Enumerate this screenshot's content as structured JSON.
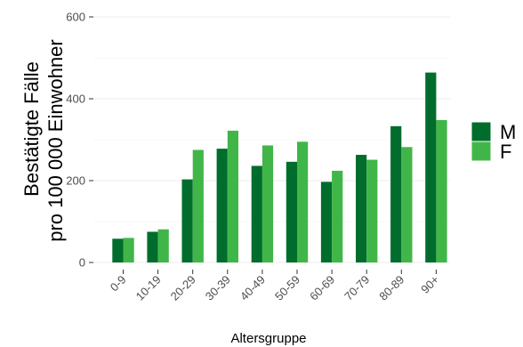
{
  "chart_data": {
    "type": "bar",
    "title": "",
    "xlabel": "Altersgruppe",
    "ylabel_lines": [
      "Bestätigte Fälle",
      "pro 100 000 Einwohner"
    ],
    "categories": [
      "0-9",
      "10-19",
      "20-29",
      "30-39",
      "40-49",
      "50-59",
      "60-69",
      "70-79",
      "80-89",
      "90+"
    ],
    "series": [
      {
        "name": "M",
        "values": [
          58,
          75,
          203,
          278,
          236,
          246,
          197,
          263,
          333,
          464
        ],
        "color": "#006d2c"
      },
      {
        "name": "F",
        "values": [
          60,
          81,
          275,
          322,
          286,
          295,
          224,
          251,
          282,
          348
        ],
        "color": "#41b648"
      }
    ],
    "ylim": [
      0,
      600
    ],
    "yticks": [
      0,
      200,
      400,
      600
    ],
    "grid": true,
    "legend_position": "right"
  }
}
